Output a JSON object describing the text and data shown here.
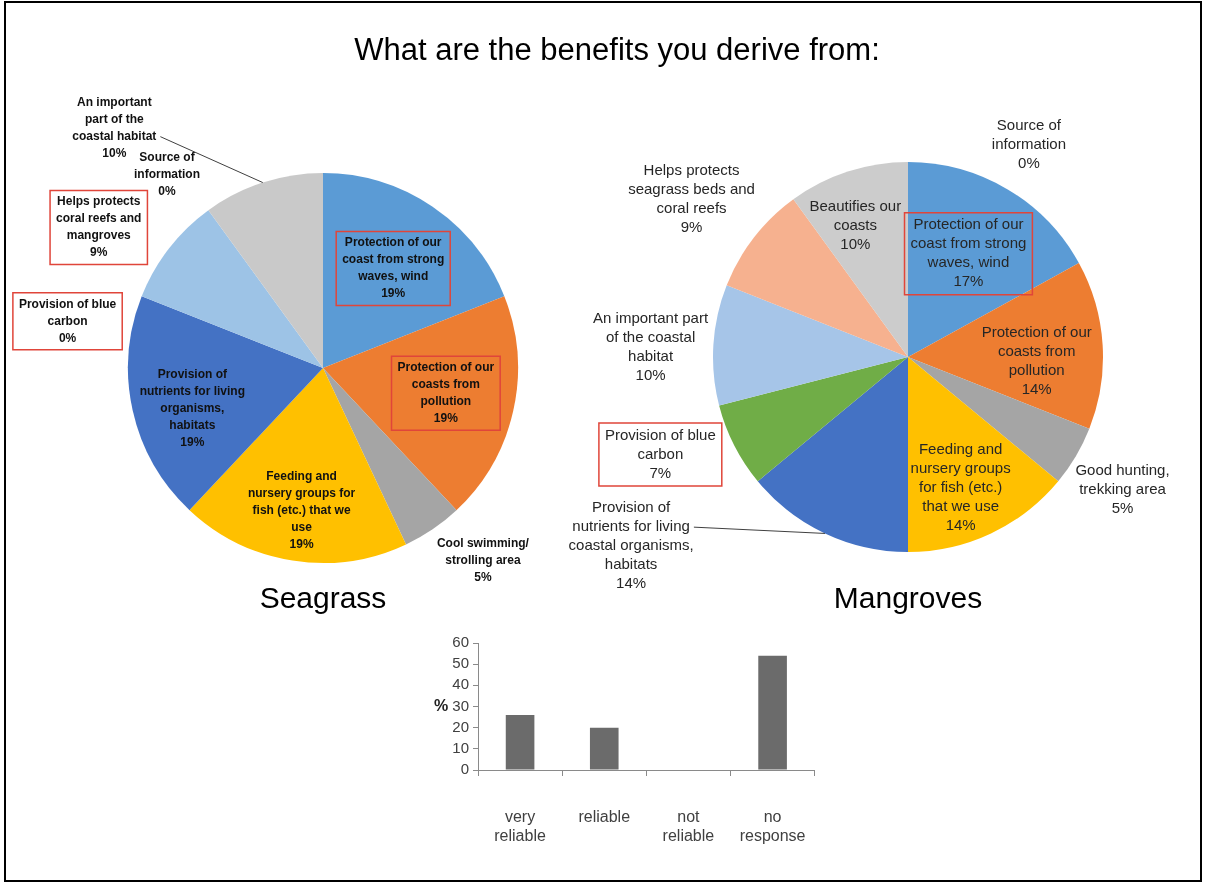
{
  "chart_data": [
    {
      "type": "pie",
      "title": "Seagrass",
      "annotations": [
        "What are the benefits you derive from:"
      ],
      "categories": [
        "Protection of our coast from strong waves, wind",
        "Protection of our coasts from pollution",
        "Cool swimming/ strolling area",
        "Feeding and nursery groups for fish (etc.) that we use",
        "Provision of nutrients for living organisms, habitats",
        "Provision of blue carbon",
        "Helps protects coral reefs and mangroves",
        "An important part of the coastal habitat",
        "Source of information"
      ],
      "values": [
        19,
        19,
        5,
        19,
        19,
        0,
        9,
        10,
        0
      ],
      "colors": [
        "#5b9bd5",
        "#ed7d31",
        "#a5a5a5",
        "#ffc000",
        "#4472c4",
        "#70ad47",
        "#9dc3e6",
        "#c9c9c9",
        "#ffd966"
      ],
      "value_labels": [
        "19%",
        "19%",
        "5%",
        "19%",
        "19%",
        "0%",
        "9%",
        "10%",
        "0%"
      ]
    },
    {
      "type": "pie",
      "title": "Mangroves",
      "categories": [
        "Protection of our coast from strong waves, wind",
        "Protection of our coasts from pollution",
        "Good hunting, trekking area",
        "Feeding and nursery groups for fish (etc.) that we use",
        "Provision of nutrients for living coastal organisms, habitats",
        "Provision of blue carbon",
        "An important part of the coastal habitat",
        "Helps protects seagrass beds and coral reefs",
        "Beautifies our coasts",
        "Source of information"
      ],
      "values": [
        17,
        14,
        5,
        14,
        14,
        7,
        10,
        9,
        10,
        0
      ],
      "colors": [
        "#5b9bd5",
        "#ed7d31",
        "#a5a5a5",
        "#ffc000",
        "#4472c4",
        "#70ad47",
        "#a6c5e8",
        "#f6b18f",
        "#cccccc",
        "#ffd966"
      ],
      "value_labels": [
        "17%",
        "14%",
        "5%",
        "14%",
        "14%",
        "7%",
        "10%",
        "9%",
        "10%",
        "0%"
      ]
    },
    {
      "type": "bar",
      "categories": [
        "very reliable",
        "reliable",
        "not reliable",
        "no response"
      ],
      "values": [
        26,
        20,
        0,
        54
      ],
      "color": "#6b6b6b",
      "ylabel": "%",
      "ylim": [
        0,
        60
      ],
      "yticks": [
        0,
        10,
        20,
        30,
        40,
        50,
        60
      ]
    }
  ]
}
